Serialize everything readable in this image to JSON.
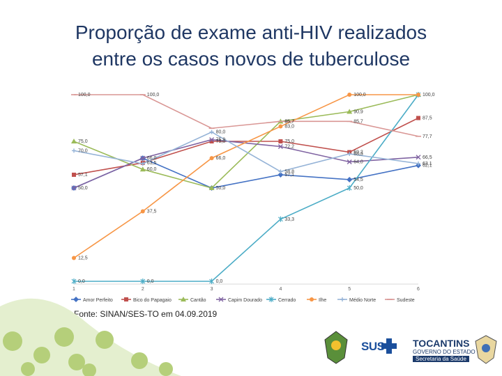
{
  "title": {
    "line1": "Proporção de exame anti-HIV realizados",
    "line2": "entre os casos novos de tuberculose"
  },
  "source": "Fonte: SINAN/SES-TO em 04.09.2019",
  "logos": {
    "sus": "SUS",
    "tocantins": "TOCANTINS",
    "government": "GOVERNO DO ESTADO",
    "secretariat": "Secretaria da Saúde"
  },
  "chart_data": {
    "type": "line",
    "title": "",
    "xlabel": "",
    "ylabel": "",
    "x": [
      "1",
      "2",
      "3",
      "4",
      "5",
      "6"
    ],
    "ylim": [
      0,
      100
    ],
    "grid": false,
    "legend_position": "bottom",
    "series": [
      {
        "name": "Amor Perfeito",
        "color": "#4472c4",
        "marker": "diamond",
        "values": [
          50.0,
          66.0,
          50.0,
          57.1,
          54.5,
          62.1
        ]
      },
      {
        "name": "Bico do Papagaio",
        "color": "#c0504d",
        "marker": "square",
        "values": [
          57.1,
          63.5,
          75.0,
          75.0,
          69.2,
          87.5
        ]
      },
      {
        "name": "Cantão",
        "color": "#9bbb59",
        "marker": "triangle",
        "values": [
          75.0,
          60.0,
          50.0,
          85.7,
          90.9,
          100.0
        ]
      },
      {
        "name": "Capim Dourado",
        "color": "#8064a2",
        "marker": "x",
        "values": [
          50.0,
          66.0,
          75.9,
          72.2,
          64.0,
          66.5
        ]
      },
      {
        "name": "Cerrado",
        "color": "#4bacc6",
        "marker": "star",
        "values": [
          0.0,
          0.0,
          0.0,
          33.3,
          50.0,
          100.0
        ]
      },
      {
        "name": "Ilhe",
        "color": "#f79646",
        "marker": "circle",
        "values": [
          12.5,
          37.5,
          66.0,
          83.0,
          100.0,
          100.0
        ]
      },
      {
        "name": "Médio Norte",
        "color": "#95b3d7",
        "marker": "plus",
        "values": [
          70.0,
          63.0,
          80.0,
          58.8,
          68.3,
          63.1
        ]
      },
      {
        "name": "Sudeste",
        "color": "#d99694",
        "marker": "dash",
        "values": [
          100.0,
          100.0,
          82.0,
          85.7,
          85.7,
          77.7
        ]
      }
    ],
    "data_labels": [
      {
        "series": 0,
        "point": 0,
        "text": "50,0"
      },
      {
        "series": 0,
        "point": 1,
        "text": "66,0"
      },
      {
        "series": 0,
        "point": 2,
        "text": "50,0"
      },
      {
        "series": 0,
        "point": 3,
        "text": "57,1"
      },
      {
        "series": 0,
        "point": 4,
        "text": "54,5"
      },
      {
        "series": 0,
        "point": 5,
        "text": "62,1"
      },
      {
        "series": 1,
        "point": 0,
        "text": "57,1"
      },
      {
        "series": 1,
        "point": 1,
        "text": "63,5"
      },
      {
        "series": 1,
        "point": 2,
        "text": "75,0"
      },
      {
        "series": 1,
        "point": 3,
        "text": "75,0"
      },
      {
        "series": 1,
        "point": 4,
        "text": "69,2"
      },
      {
        "series": 1,
        "point": 5,
        "text": "87,5"
      },
      {
        "series": 2,
        "point": 0,
        "text": "75,0"
      },
      {
        "series": 2,
        "point": 1,
        "text": "60,0"
      },
      {
        "series": 2,
        "point": 3,
        "text": "85,7"
      },
      {
        "series": 2,
        "point": 4,
        "text": "90,9"
      },
      {
        "series": 3,
        "point": 2,
        "text": "75,9"
      },
      {
        "series": 3,
        "point": 3,
        "text": "72,2"
      },
      {
        "series": 3,
        "point": 4,
        "text": "64,0"
      },
      {
        "series": 3,
        "point": 5,
        "text": "66,5"
      },
      {
        "series": 4,
        "point": 0,
        "text": "0,0"
      },
      {
        "series": 4,
        "point": 1,
        "text": "0,0"
      },
      {
        "series": 4,
        "point": 2,
        "text": "0,0"
      },
      {
        "series": 4,
        "point": 3,
        "text": "33,3"
      },
      {
        "series": 4,
        "point": 4,
        "text": "50,0"
      },
      {
        "series": 5,
        "point": 0,
        "text": "12,5"
      },
      {
        "series": 5,
        "point": 1,
        "text": "37,5"
      },
      {
        "series": 5,
        "point": 2,
        "text": "66,0"
      },
      {
        "series": 5,
        "point": 3,
        "text": "83,0"
      },
      {
        "series": 5,
        "point": 4,
        "text": "100,0"
      },
      {
        "series": 5,
        "point": 5,
        "text": "100,0"
      },
      {
        "series": 6,
        "point": 0,
        "text": "70,0"
      },
      {
        "series": 6,
        "point": 2,
        "text": "80,0"
      },
      {
        "series": 6,
        "point": 3,
        "text": "58,8"
      },
      {
        "series": 6,
        "point": 4,
        "text": "68,3"
      },
      {
        "series": 6,
        "point": 5,
        "text": "63,1"
      },
      {
        "series": 7,
        "point": 0,
        "text": "100,0"
      },
      {
        "series": 7,
        "point": 1,
        "text": "100,0"
      },
      {
        "series": 7,
        "point": 3,
        "text": "85,7"
      },
      {
        "series": 7,
        "point": 4,
        "text": "85,7"
      },
      {
        "series": 7,
        "point": 5,
        "text": "77,7"
      }
    ]
  }
}
